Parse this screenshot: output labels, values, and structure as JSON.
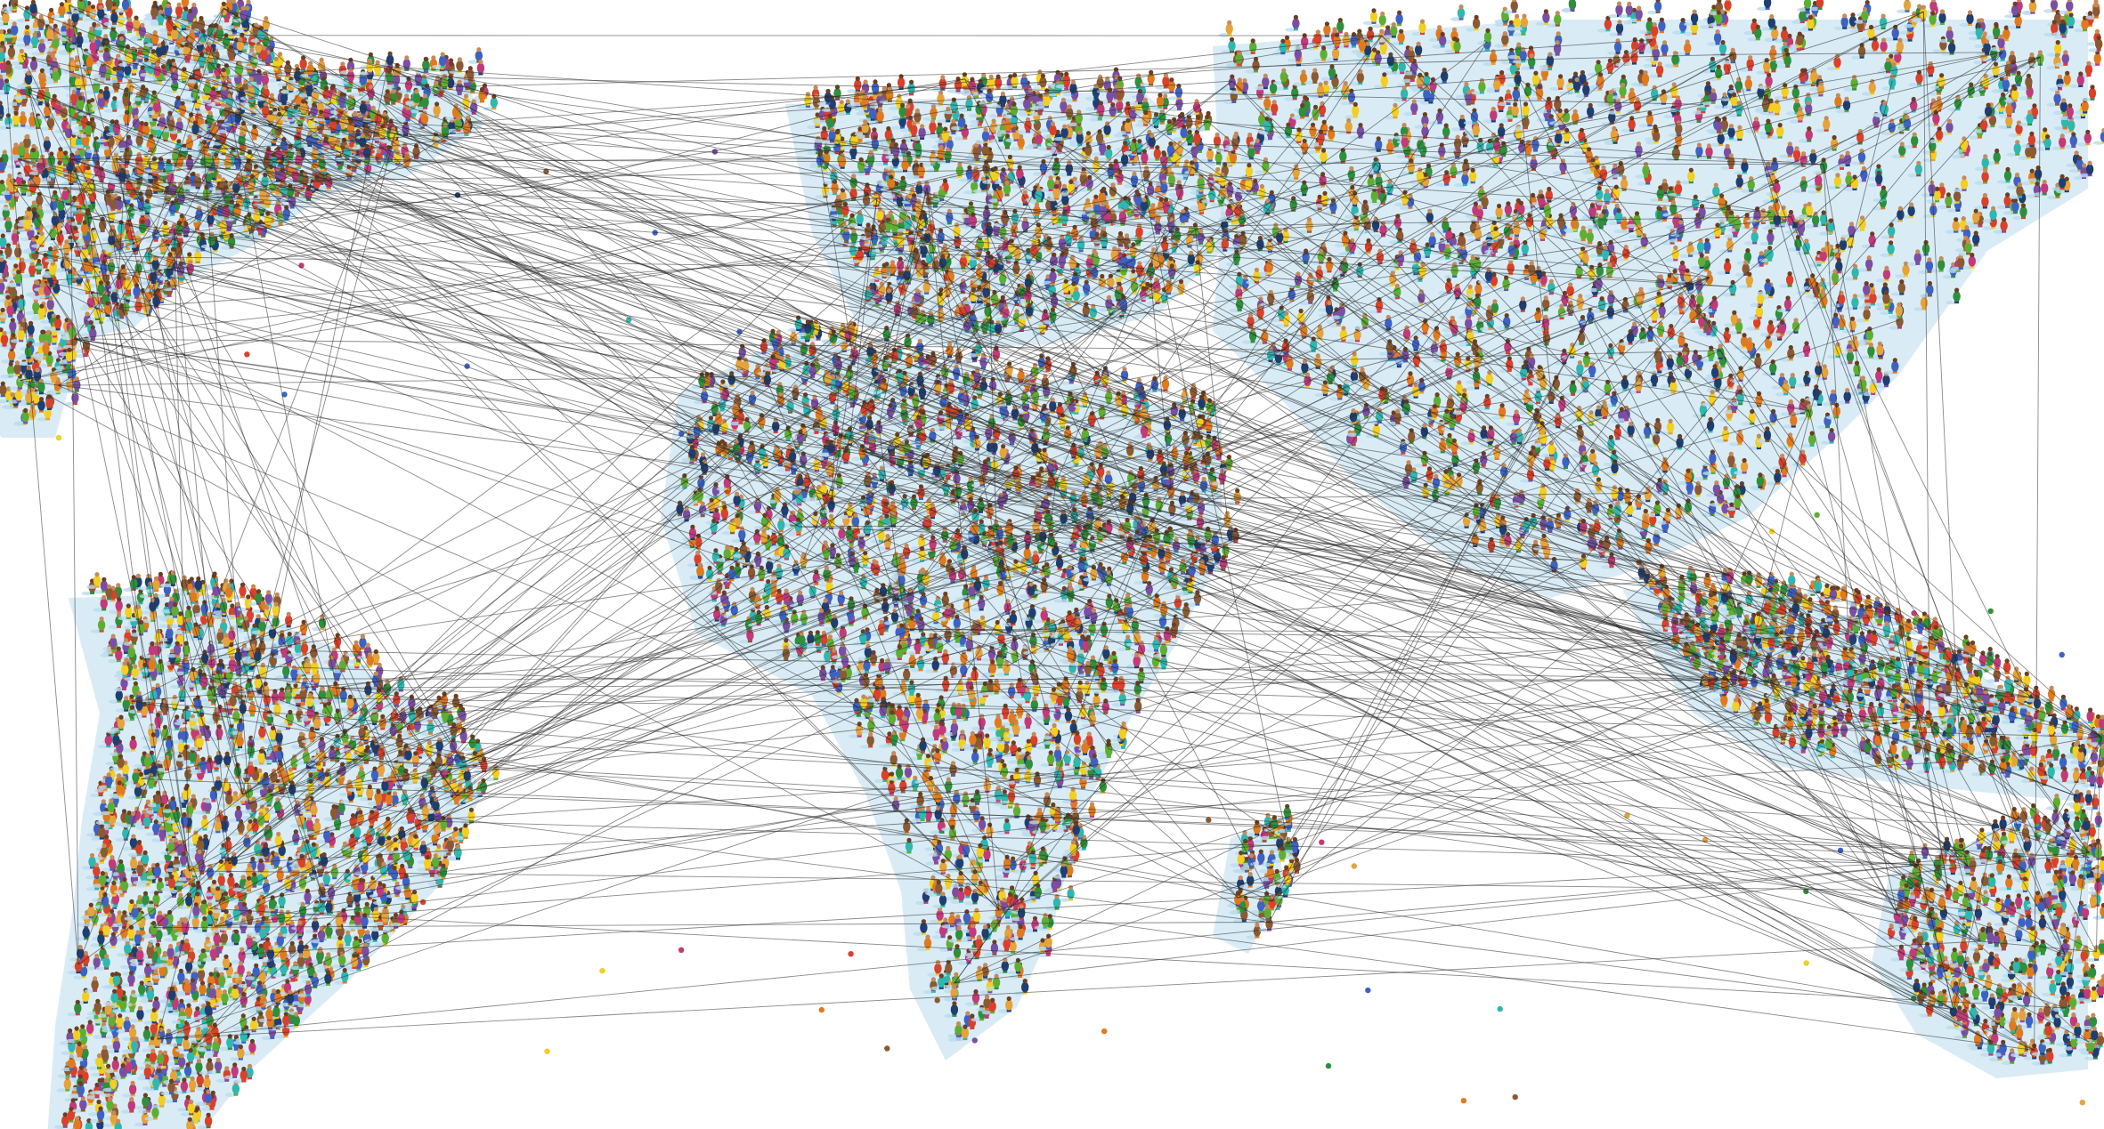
{
  "scene": {
    "subject": "world-map-formed-by-crowds-of-people-connected-by-network-lines",
    "background_color": "#ffffff",
    "shadow_color": "#b9dcef",
    "line_color": "#2a2a2a",
    "people_palette": [
      "#d9412b",
      "#2f8f3c",
      "#f2cf21",
      "#3d62c4",
      "#7a4fa3",
      "#e07a1f",
      "#2fb7b0",
      "#8a5a34",
      "#c23a7a",
      "#5fae34",
      "#1f3f73",
      "#e6a33a"
    ],
    "regions": [
      {
        "name": "north-america"
      },
      {
        "name": "greenland"
      },
      {
        "name": "south-america"
      },
      {
        "name": "europe"
      },
      {
        "name": "asia"
      },
      {
        "name": "africa"
      },
      {
        "name": "madagascar"
      },
      {
        "name": "southeast-asia"
      },
      {
        "name": "australia"
      }
    ]
  }
}
